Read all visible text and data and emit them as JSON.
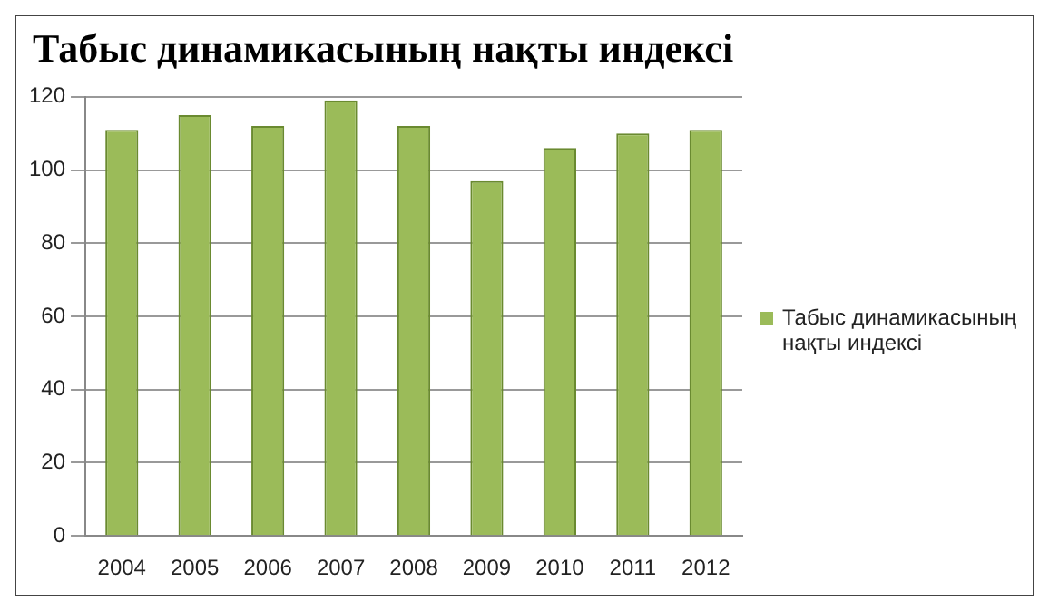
{
  "chart_data": {
    "type": "bar",
    "title": "Табыс динамикасының нақты индексі",
    "categories": [
      "2004",
      "2005",
      "2006",
      "2007",
      "2008",
      "2009",
      "2010",
      "2011",
      "2012"
    ],
    "series": [
      {
        "name": "Табыс динамикасының нақты индексі",
        "color": "#9bbb59",
        "values": [
          111,
          115,
          112,
          119,
          112,
          97,
          106,
          110,
          111
        ]
      }
    ],
    "ylim": [
      0,
      120
    ],
    "yticks": [
      0,
      20,
      40,
      60,
      80,
      100,
      120
    ],
    "grid": "y",
    "legend": "right"
  }
}
